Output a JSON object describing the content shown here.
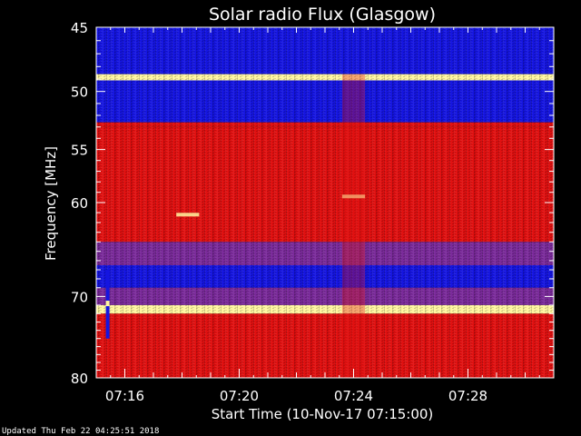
{
  "chart_data": {
    "type": "heatmap",
    "title": "Solar radio Flux (Glasgow)",
    "xlabel": "Start Time (10-Nov-17 07:15:00)",
    "ylabel": "Frequency [MHz]",
    "y_scale": "log",
    "y_inverted": true,
    "y_range_mhz": [
      45,
      80
    ],
    "y_ticks": [
      45,
      50,
      55,
      60,
      70,
      80
    ],
    "y_tick_labels": [
      "45",
      "50",
      "55",
      "60",
      "70",
      "80"
    ],
    "x_range_min": [
      "07:15:00",
      "07:31:00"
    ],
    "x_ticks": [
      "07:16",
      "07:20",
      "07:24",
      "07:28"
    ],
    "x_tick_labels": [
      "07:16",
      "07:20",
      "07:24",
      "07:28"
    ],
    "colors": {
      "low": "#1515e0",
      "mid": "#7a2a9a",
      "high": "#e01010",
      "peak": "#fff6a0"
    },
    "bands": [
      {
        "from": 45.0,
        "to": 48.6,
        "level": "low"
      },
      {
        "from": 48.6,
        "to": 49.1,
        "level": "peak"
      },
      {
        "from": 49.1,
        "to": 52.6,
        "level": "low"
      },
      {
        "from": 52.6,
        "to": 53.0,
        "level": "high"
      },
      {
        "from": 53.0,
        "to": 64.0,
        "level": "high"
      },
      {
        "from": 64.0,
        "to": 66.5,
        "level": "mid"
      },
      {
        "from": 66.5,
        "to": 69.0,
        "level": "low"
      },
      {
        "from": 69.0,
        "to": 71.0,
        "level": "mid"
      },
      {
        "from": 71.0,
        "to": 72.0,
        "level": "peak"
      },
      {
        "from": 72.0,
        "to": 80.0,
        "level": "high"
      }
    ],
    "features": [
      {
        "kind": "burst",
        "time": "07:15:24",
        "freq_from": 67.0,
        "freq_to": 75.0
      },
      {
        "kind": "streak",
        "time_from": "07:17:48",
        "time_to": "07:18:36",
        "freq": 61.2
      },
      {
        "kind": "streak",
        "time_from": "07:23:36",
        "time_to": "07:24:24",
        "freq": 59.4
      },
      {
        "kind": "column",
        "time_from": "07:23:36",
        "time_to": "07:24:24",
        "freq_from": 48.6,
        "freq_to": 80.0
      }
    ]
  },
  "footer": {
    "updated": "Updated Thu Feb 22 04:25:51 2018"
  }
}
